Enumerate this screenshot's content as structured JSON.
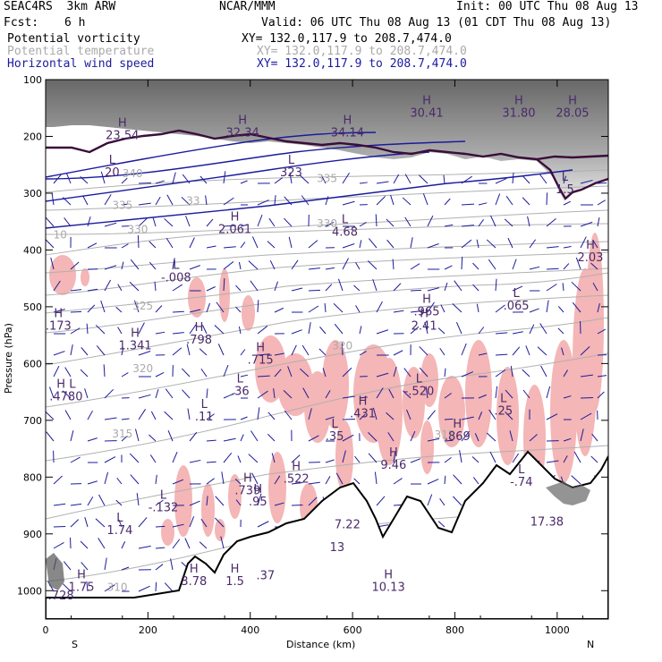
{
  "header": {
    "model": "SEAC4RS  3km ARW",
    "org": "NCAR/MMM",
    "init": "Init: 00 UTC Thu 08 Aug 13",
    "fcst_label": "Fcst:",
    "fcst_value": "6 h",
    "valid": "Valid: 06 UTC Thu 08 Aug 13 (01 CDT Thu 08 Aug 13)",
    "fields": [
      {
        "name": "Potential vorticity",
        "xy": "XY= 132.0,117.9 to 208.7,474.0",
        "color": "#000000"
      },
      {
        "name": "Potential temperature",
        "xy": "XY= 132.0,117.9 to 208.7,474.0",
        "color": "#aaaaaa"
      },
      {
        "name": "Horizontal wind speed",
        "xy": "XY= 132.0,117.9 to 208.7,474.0",
        "color": "#1b1b9e"
      }
    ]
  },
  "chart_data": {
    "type": "cross-section",
    "xlabel": "Distance (km)",
    "ylabel": "Pressure (hPa)",
    "xlim": [
      0,
      1100
    ],
    "ylim": [
      1050,
      100
    ],
    "x_ticks": [
      "0",
      "200",
      "400",
      "600",
      "800",
      "1000"
    ],
    "y_ticks": [
      "100",
      "200",
      "300",
      "400",
      "500",
      "600",
      "700",
      "800",
      "900",
      "1000"
    ],
    "x_tick_values": [
      0,
      200,
      400,
      600,
      800,
      1000
    ],
    "y_tick_values": [
      100,
      200,
      300,
      400,
      500,
      600,
      700,
      800,
      900,
      1000
    ],
    "left_end_label": "S",
    "right_end_label": "N",
    "theta_contour_labels": [
      {
        "text": "340",
        "x": 150,
        "p": 272
      },
      {
        "text": "335",
        "x": 130,
        "p": 328
      },
      {
        "text": "330",
        "x": 160,
        "p": 370
      },
      {
        "text": "335",
        "x": 530,
        "p": 280
      },
      {
        "text": "330",
        "x": 530,
        "p": 360
      },
      {
        "text": "325",
        "x": 170,
        "p": 505
      },
      {
        "text": "320",
        "x": 170,
        "p": 615
      },
      {
        "text": "320",
        "x": 560,
        "p": 575
      },
      {
        "text": "315",
        "x": 130,
        "p": 730
      },
      {
        "text": "315",
        "x": 760,
        "p": 732
      },
      {
        "text": "310",
        "x": 120,
        "p": 1000
      },
      {
        "text": "33",
        "x": 275,
        "p": 320
      },
      {
        "text": "10",
        "x": 15,
        "p": 380
      }
    ],
    "extrema_labels": [
      {
        "kind": "H",
        "value": "23.54",
        "x": 150,
        "p": 205,
        "color": "#4a2a6a"
      },
      {
        "kind": "H",
        "value": "32.34",
        "x": 385,
        "p": 200,
        "color": "#1b1b9e"
      },
      {
        "kind": "H",
        "value": "34.14",
        "x": 590,
        "p": 200,
        "color": "#1b1b9e"
      },
      {
        "kind": "H",
        "value": "30.41",
        "x": 745,
        "p": 165,
        "color": "#1b1b9e"
      },
      {
        "kind": "H",
        "value": "31.80",
        "x": 925,
        "p": 165,
        "color": "#1b1b9e"
      },
      {
        "kind": "H",
        "value": "28.05",
        "x": 1030,
        "p": 165,
        "color": "#1b1b9e"
      },
      {
        "kind": "L",
        "value": "20",
        "x": 130,
        "p": 270,
        "color": "#1b1b9e"
      },
      {
        "kind": "L",
        "value": "323",
        "x": 480,
        "p": 270,
        "color": "#4a2a6a"
      },
      {
        "kind": "L",
        "value": "1.5",
        "x": 1015,
        "p": 300,
        "color": "#4a2a6a"
      },
      {
        "kind": "H",
        "value": "2.061",
        "x": 370,
        "p": 370,
        "color": "#4a2a6a"
      },
      {
        "kind": "L",
        "value": "4.68",
        "x": 585,
        "p": 375,
        "color": "#1b1b9e"
      },
      {
        "kind": "H",
        "value": "2.03",
        "x": 1065,
        "p": 420,
        "color": "#1b1b9e"
      },
      {
        "kind": "L",
        "value": "-.008",
        "x": 255,
        "p": 455,
        "color": "#4a2a6a"
      },
      {
        "kind": "H",
        "value": ".965",
        "x": 745,
        "p": 515,
        "color": "#4a2a6a"
      },
      {
        "kind": "L",
        "value": ".065",
        "x": 920,
        "p": 505,
        "color": "#4a2a6a"
      },
      {
        "kind": "H",
        "value": "2.41",
        "x": 740,
        "p": 540,
        "color": "#4a2a6a"
      },
      {
        "kind": "H",
        "value": ".173",
        "x": 25,
        "p": 540,
        "color": "#4a2a6a"
      },
      {
        "kind": "H",
        "value": "1.341",
        "x": 175,
        "p": 575,
        "color": "#4a2a6a"
      },
      {
        "kind": "H",
        "value": ".798",
        "x": 300,
        "p": 565,
        "color": "#4a2a6a"
      },
      {
        "kind": "H",
        "value": ".715",
        "x": 420,
        "p": 600,
        "color": "#4a2a6a"
      },
      {
        "kind": "L",
        "value": ".36",
        "x": 380,
        "p": 655,
        "color": "#4a2a6a"
      },
      {
        "kind": "L",
        "value": "-.520",
        "x": 730,
        "p": 655,
        "color": "#4a2a6a"
      },
      {
        "kind": "H L",
        "value": ".4780",
        "x": 40,
        "p": 665,
        "color": "#4a2a6a"
      },
      {
        "kind": "L",
        "value": ".11",
        "x": 310,
        "p": 700,
        "color": "#4a2a6a"
      },
      {
        "kind": "H",
        "value": ".431",
        "x": 620,
        "p": 695,
        "color": "#4a2a6a"
      },
      {
        "kind": "L",
        "value": ".25",
        "x": 895,
        "p": 690,
        "color": "#4a2a6a"
      },
      {
        "kind": "L",
        "value": ".35",
        "x": 565,
        "p": 735,
        "color": "#4a2a6a"
      },
      {
        "kind": "H",
        "value": ".869",
        "x": 805,
        "p": 735,
        "color": "#4a2a6a"
      },
      {
        "kind": "H",
        "value": "9.46",
        "x": 680,
        "p": 785,
        "color": "#1b1b9e"
      },
      {
        "kind": "H",
        "value": ".522",
        "x": 490,
        "p": 810,
        "color": "#4a2a6a"
      },
      {
        "kind": "L",
        "value": "-.74",
        "x": 930,
        "p": 815,
        "color": "#4a2a6a"
      },
      {
        "kind": "H",
        "value": ".739",
        "x": 395,
        "p": 830,
        "color": "#4a2a6a"
      },
      {
        "kind": "L",
        "value": "-.132",
        "x": 230,
        "p": 860,
        "color": "#4a2a6a"
      },
      {
        "kind": "H",
        "value": ".95",
        "x": 415,
        "p": 850,
        "color": "#4a2a6a"
      },
      {
        "kind": "L",
        "value": "1.74",
        "x": 145,
        "p": 900,
        "color": "#1b1b9e"
      },
      {
        "kind": "",
        "value": "7.22",
        "x": 590,
        "p": 890,
        "color": "#1b1b9e"
      },
      {
        "kind": "",
        "value": "13",
        "x": 570,
        "p": 930,
        "color": "#1b1b9e"
      },
      {
        "kind": "",
        "value": "17.38",
        "x": 980,
        "p": 885,
        "color": "#1b1b9e"
      },
      {
        "kind": "H",
        "value": "1.75",
        "x": 70,
        "p": 1000,
        "color": "#1b1b9e"
      },
      {
        "kind": "H",
        "value": "3.78",
        "x": 290,
        "p": 990,
        "color": "#1b1b9e"
      },
      {
        "kind": "H",
        "value": "1.5",
        "x": 370,
        "p": 990,
        "color": "#1b1b9e"
      },
      {
        "kind": "",
        "value": ".37",
        "x": 430,
        "p": 980,
        "color": "#1b1b9e"
      },
      {
        "kind": "H",
        "value": "10.13",
        "x": 670,
        "p": 1000,
        "color": "#1b1b9e"
      },
      {
        "kind": "",
        "value": ".728",
        "x": 30,
        "p": 1015,
        "color": "#4a2a6a"
      }
    ]
  }
}
